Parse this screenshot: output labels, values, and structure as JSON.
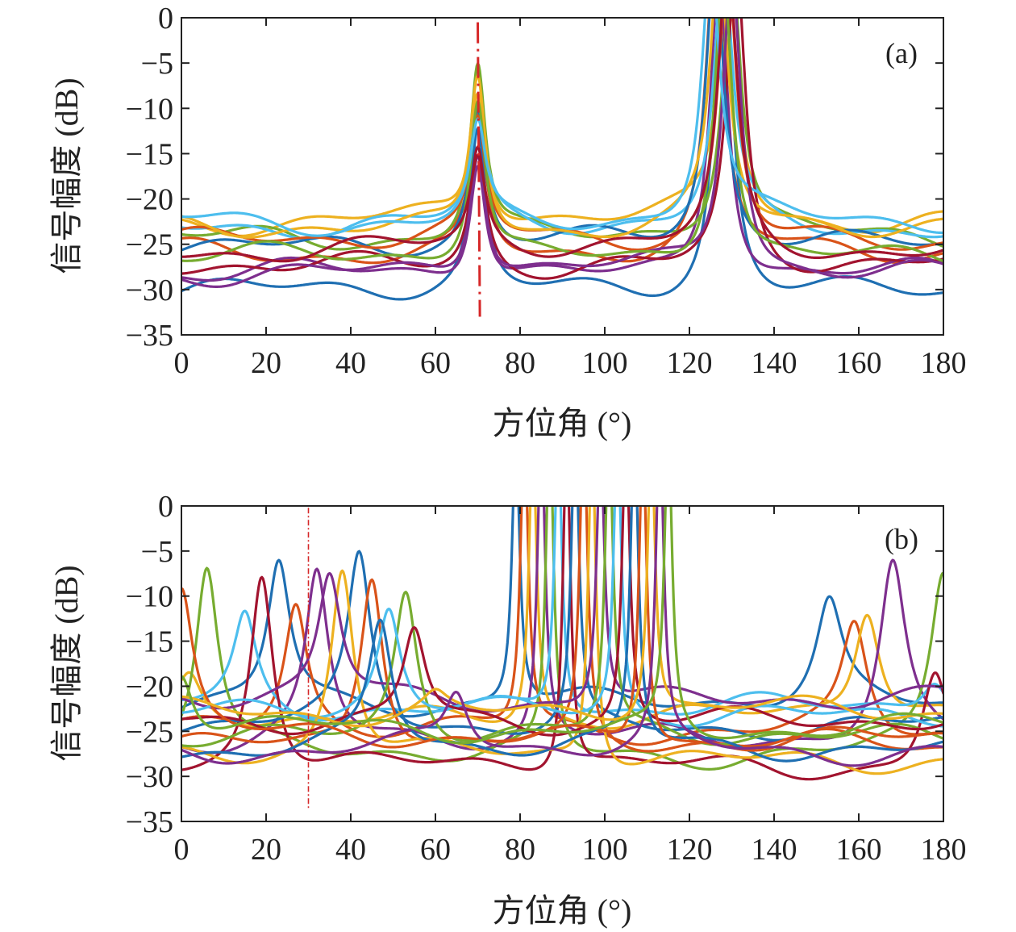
{
  "chart_data": [
    {
      "type": "line",
      "panel_tag": "(a)",
      "xlabel": "方位角 (°)",
      "ylabel": "信号幅度 (dB)",
      "xlim": [
        0,
        180
      ],
      "ylim": [
        -35,
        0
      ],
      "xticks": [
        0,
        20,
        40,
        60,
        80,
        100,
        120,
        140,
        160,
        180
      ],
      "yticks": [
        0,
        -5,
        -10,
        -15,
        -20,
        -25,
        -30,
        -35
      ],
      "grid": false,
      "reference_line": {
        "x": [
          70,
          70.5
        ],
        "y": [
          -0.5,
          -33
        ],
        "color": "#d62728",
        "style": "dash-dot"
      },
      "colors": [
        "#1f6fb2",
        "#d95319",
        "#edb120",
        "#7e2f8e",
        "#77ac30",
        "#4dbeee",
        "#a2142f"
      ],
      "series": [
        {
          "base": -30.2,
          "peak1": {
            "x": 70,
            "y": -13
          },
          "peak2": {
            "x": 128,
            "y": 0
          }
        },
        {
          "base": -26.0,
          "peak1": {
            "x": 70,
            "y": -11
          },
          "peak2": {
            "x": 126,
            "y": 0
          }
        },
        {
          "base": -22.3,
          "peak1": {
            "x": 70,
            "y": -8
          },
          "peak2": {
            "x": 129,
            "y": 0
          }
        },
        {
          "base": -28.3,
          "peak1": {
            "x": 70,
            "y": -15
          },
          "peak2": {
            "x": 127,
            "y": 0
          }
        },
        {
          "base": -24.2,
          "peak1": {
            "x": 70,
            "y": -5
          },
          "peak2": {
            "x": 130,
            "y": 0
          }
        },
        {
          "base": -23.0,
          "peak1": {
            "x": 70,
            "y": -11
          },
          "peak2": {
            "x": 128,
            "y": 0
          }
        },
        {
          "base": -27.5,
          "peak1": {
            "x": 70,
            "y": -14
          },
          "peak2": {
            "x": 131,
            "y": 0
          }
        },
        {
          "base": -25.0,
          "peak1": {
            "x": 70,
            "y": -10
          },
          "peak2": {
            "x": 126,
            "y": 0
          }
        },
        {
          "base": -24.5,
          "peak1": {
            "x": 70,
            "y": -12
          },
          "peak2": {
            "x": 129,
            "y": 0
          }
        },
        {
          "base": -23.2,
          "peak1": {
            "x": 70,
            "y": -6
          },
          "peak2": {
            "x": 127,
            "y": 0
          }
        },
        {
          "base": -28.0,
          "peak1": {
            "x": 70,
            "y": -14
          },
          "peak2": {
            "x": 130,
            "y": 0
          }
        },
        {
          "base": -26.5,
          "peak1": {
            "x": 70,
            "y": -9
          },
          "peak2": {
            "x": 128,
            "y": 0
          }
        },
        {
          "base": -22.5,
          "peak1": {
            "x": 70,
            "y": -12
          },
          "peak2": {
            "x": 125,
            "y": 0
          }
        },
        {
          "base": -25.5,
          "peak1": {
            "x": 70,
            "y": -16
          },
          "peak2": {
            "x": 129,
            "y": 0
          }
        }
      ]
    },
    {
      "type": "line",
      "panel_tag": "(b)",
      "xlabel": "方位角 (°)",
      "ylabel": "信号幅度 (dB)",
      "xlim": [
        0,
        180
      ],
      "ylim": [
        -35,
        0
      ],
      "xticks": [
        0,
        20,
        40,
        60,
        80,
        100,
        120,
        140,
        160,
        180
      ],
      "yticks": [
        0,
        -5,
        -10,
        -15,
        -20,
        -25,
        -30,
        -35
      ],
      "grid": false,
      "reference_line": {
        "x": [
          30,
          30
        ],
        "y": [
          -0.2,
          -33.5
        ],
        "color": "#d62728",
        "style": "dash-dot"
      },
      "colors": [
        "#1f6fb2",
        "#d95319",
        "#edb120",
        "#7e2f8e",
        "#77ac30",
        "#4dbeee",
        "#a2142f"
      ],
      "series": [
        {
          "base": -22.0,
          "main": 79,
          "side": {
            "x": 23,
            "y": -6
          },
          "side2": {
            "x": 153,
            "y": -11
          }
        },
        {
          "base": -25.0,
          "main": 81,
          "side": {
            "x": 27,
            "y": -11
          },
          "side2": {
            "x": 159,
            "y": -13
          }
        },
        {
          "base": -23.5,
          "main": 83,
          "side": {
            "x": 2,
            "y": -19.5
          },
          "side2": {
            "x": 162,
            "y": -11
          }
        },
        {
          "base": -26.0,
          "main": 85,
          "side": {
            "x": 32,
            "y": -7.5
          },
          "side2": {
            "x": 168,
            "y": -6.5
          }
        },
        {
          "base": -27.5,
          "main": 87,
          "side": {
            "x": 6,
            "y": -6.8
          },
          "side2": {
            "x": 180,
            "y": -7
          }
        },
        {
          "base": -22.5,
          "main": 89,
          "side": {
            "x": 15,
            "y": -12.5
          },
          "side2": {
            "x": 178,
            "y": -18.5
          }
        },
        {
          "base": -29.0,
          "main": 91,
          "side": {
            "x": 19,
            "y": -6.8
          },
          "side2": {
            "x": 178,
            "y": -18
          }
        },
        {
          "base": -24.5,
          "main": 93,
          "side": {
            "x": 42,
            "y": -6.2
          }
        },
        {
          "base": -26.5,
          "main": 95,
          "side": {
            "x": 45,
            "y": -6.5
          }
        },
        {
          "base": -28.0,
          "main": 97,
          "side": {
            "x": 38,
            "y": -6.5
          }
        },
        {
          "base": -21.5,
          "main": 99,
          "side": {
            "x": 35,
            "y": -7.8
          }
        },
        {
          "base": -25.5,
          "main": 101,
          "side": {
            "x": 53,
            "y": -9.2
          }
        },
        {
          "base": -23.0,
          "main": 103,
          "side": {
            "x": 49,
            "y": -11.5
          }
        },
        {
          "base": -24.0,
          "main": 105,
          "side": {
            "x": 55,
            "y": -13.5
          }
        },
        {
          "base": -26.8,
          "main": 107,
          "side": {
            "x": 47,
            "y": -13
          }
        },
        {
          "base": -25.8,
          "main": 109,
          "side": {
            "x": 0,
            "y": -9.5
          }
        },
        {
          "base": -22.8,
          "main": 111,
          "side": {
            "x": 60,
            "y": -21
          }
        },
        {
          "base": -27.0,
          "main": 113,
          "side": {
            "x": 65,
            "y": -21
          }
        },
        {
          "base": -24.8,
          "main": 115,
          "side": {
            "x": 0,
            "y": -18
          }
        }
      ]
    }
  ]
}
